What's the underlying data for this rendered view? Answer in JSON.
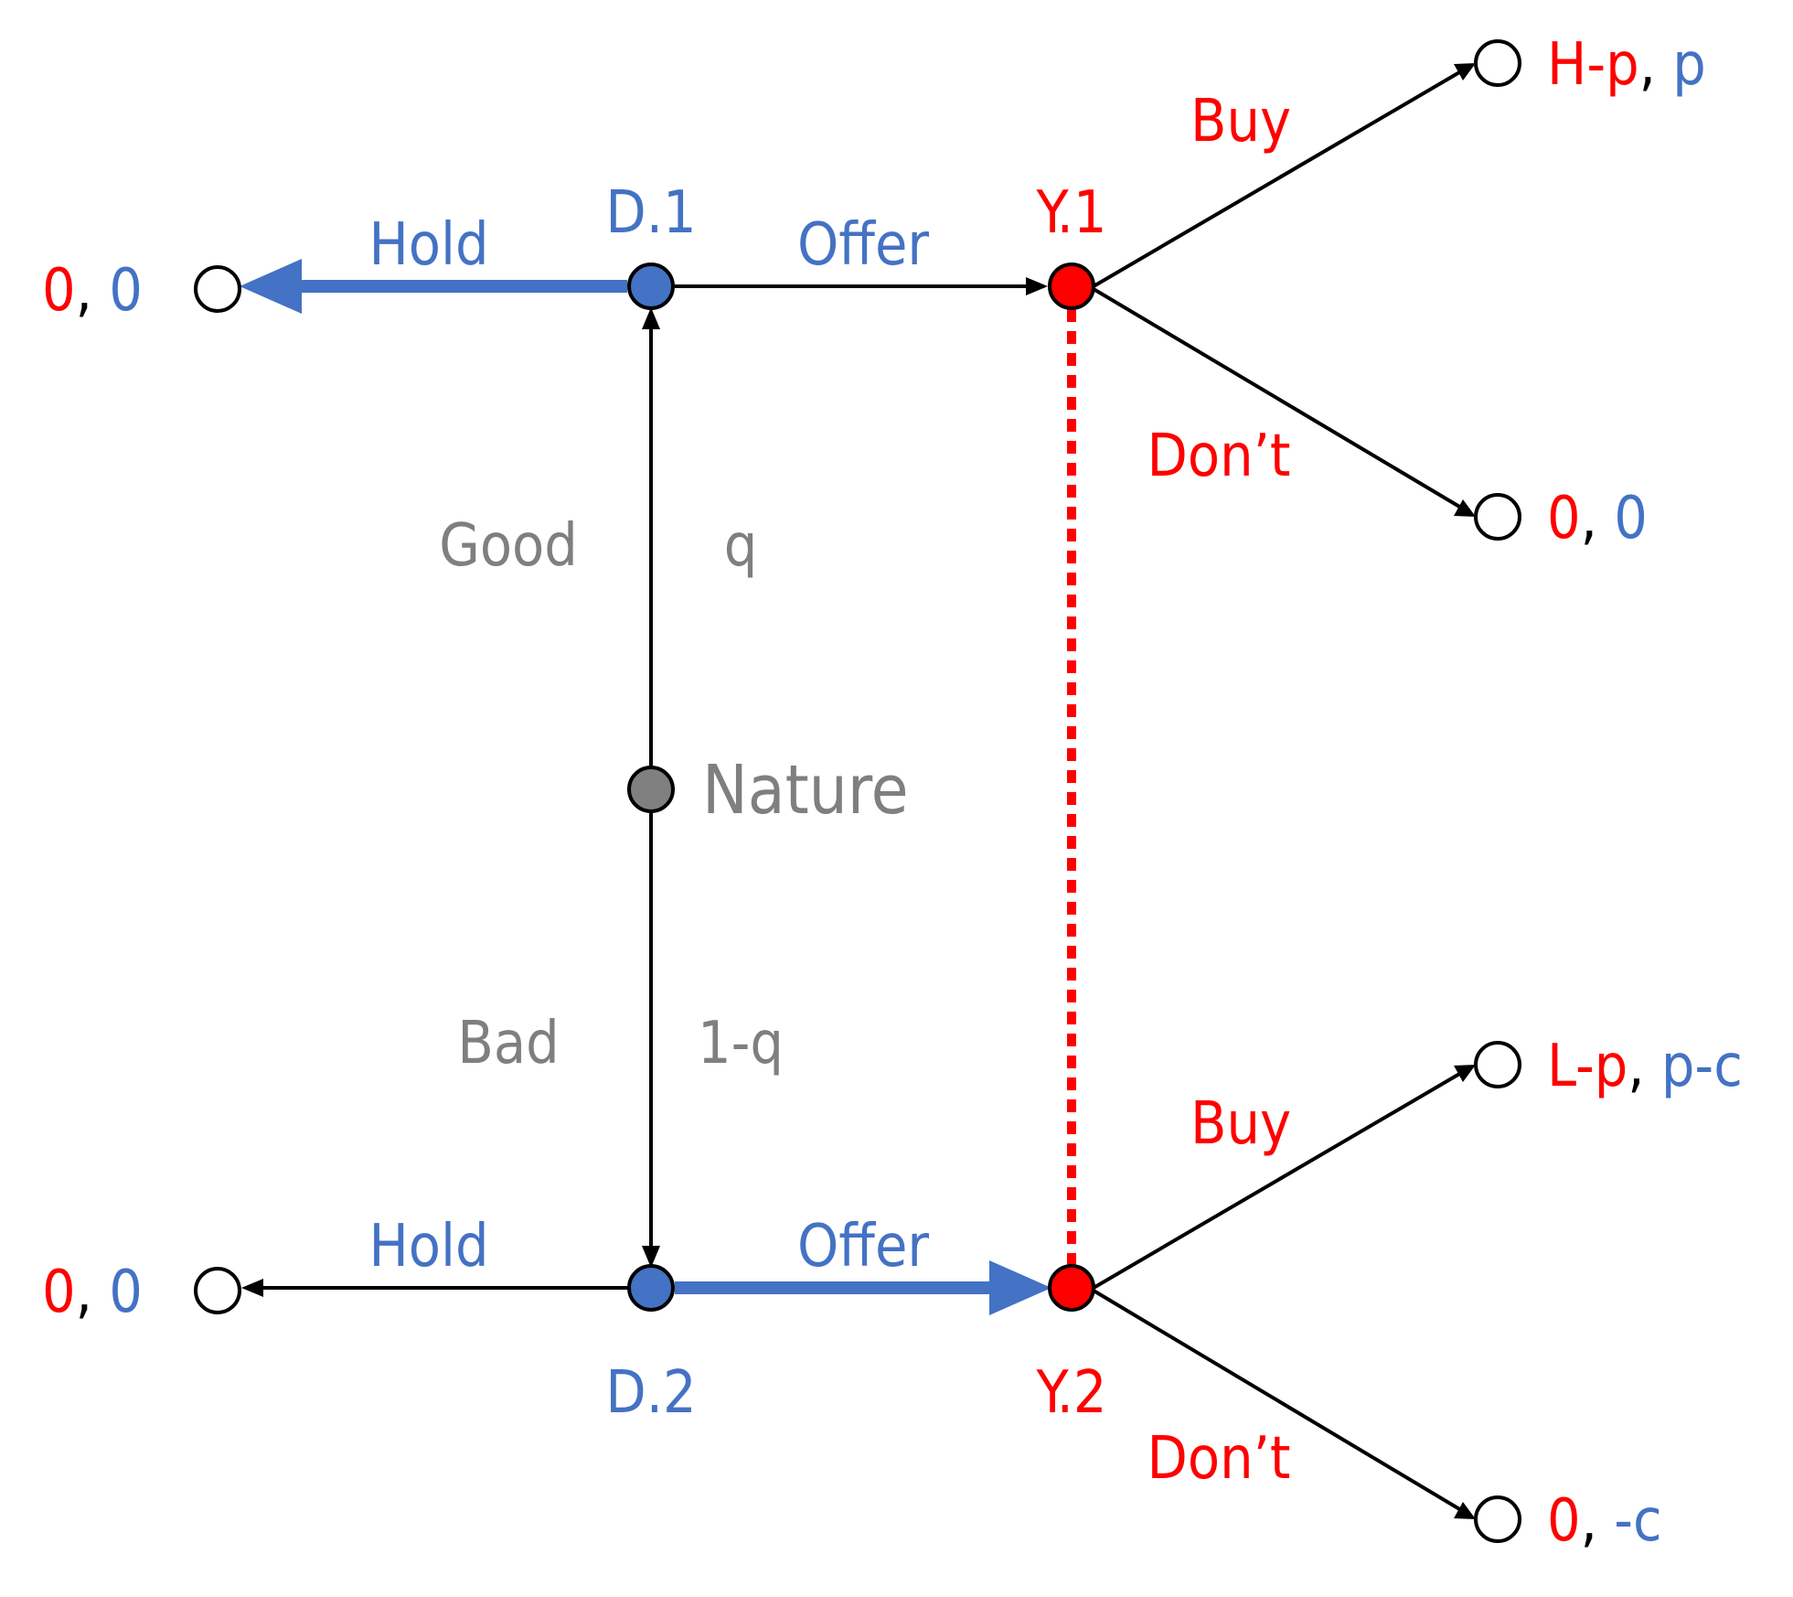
{
  "colors": {
    "player_diner": "#4472c4",
    "player_you": "#ff0000",
    "nature": "#808080",
    "edge": "#000000"
  },
  "nodes": {
    "d1": "D.1",
    "d2": "D.2",
    "y1": "Y.1",
    "y2": "Y.2",
    "nature": "Nature"
  },
  "actions": {
    "hold_top": "Hold",
    "offer_top": "Offer",
    "hold_bottom": "Hold",
    "offer_bottom": "Offer",
    "buy_top": "Buy",
    "dont_top": "Don’t",
    "buy_bottom": "Buy",
    "dont_bottom": "Don’t",
    "good": "Good",
    "bad": "Bad"
  },
  "probabilities": {
    "good": "q",
    "bad": "1-q"
  },
  "payoffs": {
    "hold_top": {
      "first": "0",
      "sep": ", ",
      "second": "0"
    },
    "hold_bottom": {
      "first": "0",
      "sep": ", ",
      "second": "0"
    },
    "buy_top": {
      "first": "H-p",
      "sep": ", ",
      "second": "p"
    },
    "dont_top": {
      "first": "0",
      "sep": ", ",
      "second": "0"
    },
    "buy_bottom": {
      "first": "L-p",
      "sep": ", ",
      "second": "p-c"
    },
    "dont_bottom": {
      "first": "0",
      "sep": ", ",
      "second": "-c"
    }
  }
}
